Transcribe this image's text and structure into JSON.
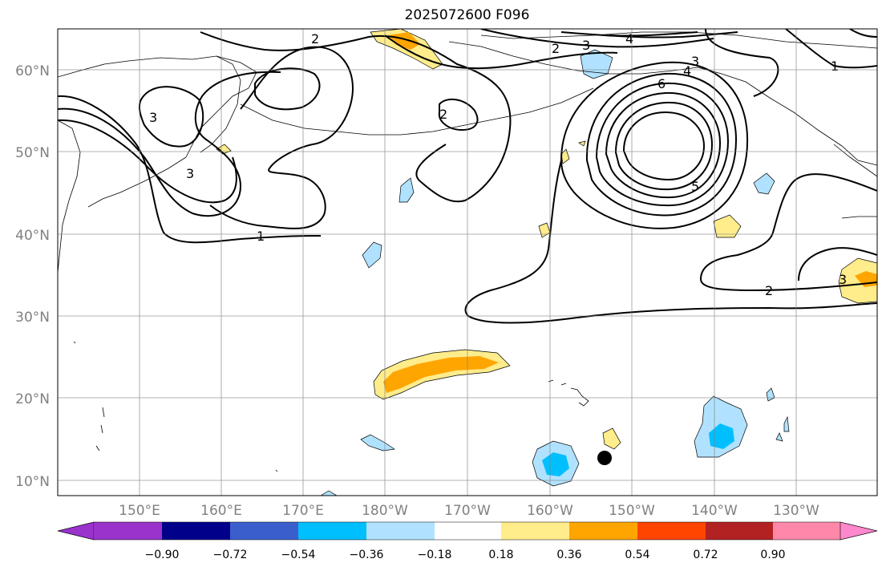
{
  "title": "2025072600 F096",
  "map": {
    "latitude_labels": [
      "60°N",
      "50°N",
      "40°N",
      "30°N",
      "20°N",
      "10°N"
    ],
    "longitude_labels": [
      "150°E",
      "160°E",
      "170°E",
      "180°W",
      "170°W",
      "160°W",
      "150°W",
      "140°W",
      "130°W"
    ],
    "gridlines": true,
    "contour_color": "#000000",
    "contour_labels": [
      {
        "text": "2",
        "location": "north of Kamchatka"
      },
      {
        "text": "3",
        "location": "Sea of Okhotsk"
      },
      {
        "text": "2",
        "location": "Bering Sea"
      },
      {
        "text": "3",
        "location": "off Kamchatka"
      },
      {
        "text": "1",
        "location": "north Pacific 165E"
      },
      {
        "text": "2",
        "location": "Alaska north"
      },
      {
        "text": "3",
        "location": "Alaska north"
      },
      {
        "text": "4",
        "location": "Alaska north"
      },
      {
        "text": "3",
        "location": "Gulf of Alaska low"
      },
      {
        "text": "4",
        "location": "Gulf of Alaska low"
      },
      {
        "text": "6",
        "location": "Gulf of Alaska low"
      },
      {
        "text": "5",
        "location": "Gulf of Alaska low"
      },
      {
        "text": "1",
        "location": "Canada"
      },
      {
        "text": "2",
        "location": "northeast Pacific"
      },
      {
        "text": "3",
        "location": "California coast"
      }
    ],
    "marker": {
      "label": "black-dot",
      "color": "#000000"
    }
  },
  "colorbar": {
    "tick_labels": [
      "−0.90",
      "−0.72",
      "−0.54",
      "−0.36",
      "−0.18",
      "0.18",
      "0.36",
      "0.54",
      "0.72",
      "0.90"
    ],
    "colors": [
      "#9933cc",
      "#00008b",
      "#3a5fcd",
      "#00bfff",
      "#b0e2ff",
      "#ffffff",
      "#ffec8b",
      "#ffa500",
      "#ff4500",
      "#b22222",
      "#ff88aa",
      "#ff88cc"
    ]
  }
}
